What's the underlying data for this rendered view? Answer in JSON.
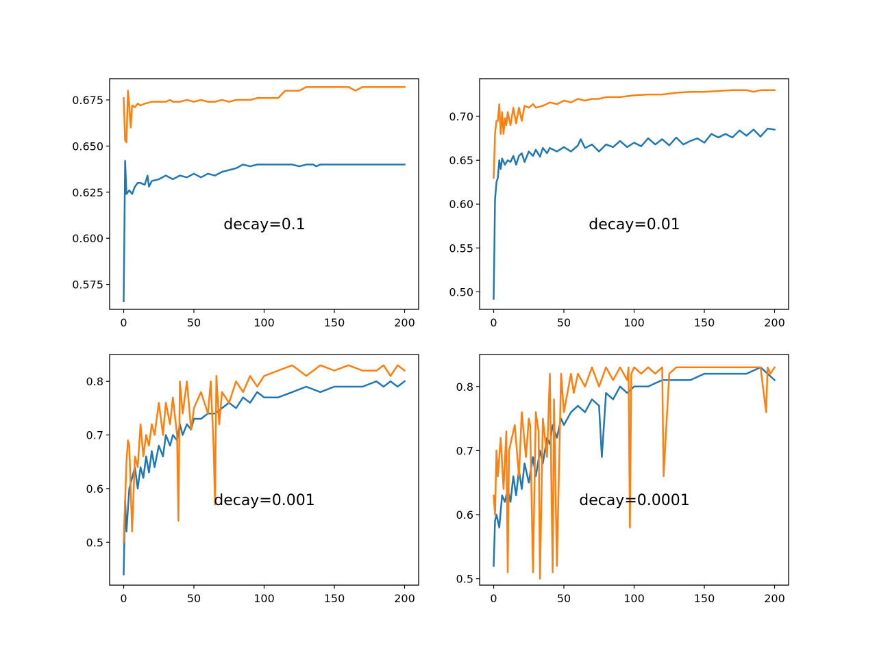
{
  "figure": {
    "colors": {
      "series_1": "#1f77b4",
      "series_2": "#ff7f0e",
      "axes": "#000000",
      "background": "#ffffff"
    },
    "grid": false,
    "legend": "none"
  },
  "chart_data": [
    {
      "type": "line",
      "title": "",
      "xlabel": "",
      "ylabel": "",
      "annotation": "decay=0.1",
      "xlim": [
        -10,
        210
      ],
      "ylim": [
        0.5615,
        0.6865
      ],
      "x_ticks": [
        "0",
        "50",
        "100",
        "150",
        "200"
      ],
      "y_ticks": [
        "0.575",
        "0.600",
        "0.625",
        "0.650",
        "0.675"
      ],
      "x_tick_values": [
        0,
        50,
        100,
        150,
        200
      ],
      "y_tick_values": [
        0.575,
        0.6,
        0.625,
        0.65,
        0.675
      ],
      "series": [
        {
          "color": "#1f77b4",
          "x": [
            0,
            1,
            2,
            4,
            6,
            8,
            10,
            12,
            15,
            17,
            18,
            20,
            25,
            30,
            35,
            40,
            45,
            50,
            55,
            60,
            65,
            70,
            75,
            80,
            85,
            90,
            95,
            100,
            110,
            120,
            125,
            130,
            135,
            137,
            140,
            150,
            160,
            170,
            180,
            190,
            200
          ],
          "values": [
            0.566,
            0.642,
            0.624,
            0.626,
            0.624,
            0.628,
            0.63,
            0.63,
            0.629,
            0.634,
            0.628,
            0.631,
            0.632,
            0.634,
            0.632,
            0.634,
            0.633,
            0.635,
            0.633,
            0.635,
            0.634,
            0.636,
            0.637,
            0.638,
            0.64,
            0.639,
            0.64,
            0.64,
            0.64,
            0.64,
            0.639,
            0.64,
            0.64,
            0.639,
            0.64,
            0.64,
            0.64,
            0.64,
            0.64,
            0.64,
            0.64
          ]
        },
        {
          "color": "#ff7f0e",
          "x": [
            0,
            1,
            2,
            3,
            4,
            5,
            6,
            8,
            10,
            12,
            15,
            20,
            25,
            30,
            33,
            35,
            40,
            45,
            50,
            55,
            60,
            65,
            70,
            75,
            80,
            85,
            90,
            95,
            100,
            110,
            115,
            120,
            125,
            130,
            135,
            140,
            150,
            160,
            165,
            170,
            180,
            190,
            200
          ],
          "values": [
            0.676,
            0.653,
            0.652,
            0.68,
            0.672,
            0.66,
            0.672,
            0.671,
            0.673,
            0.672,
            0.673,
            0.674,
            0.674,
            0.674,
            0.675,
            0.674,
            0.674,
            0.675,
            0.674,
            0.675,
            0.674,
            0.674,
            0.675,
            0.674,
            0.675,
            0.675,
            0.675,
            0.676,
            0.676,
            0.676,
            0.68,
            0.68,
            0.68,
            0.682,
            0.682,
            0.682,
            0.682,
            0.682,
            0.68,
            0.682,
            0.682,
            0.682,
            0.682
          ]
        }
      ]
    },
    {
      "type": "line",
      "title": "",
      "xlabel": "",
      "ylabel": "",
      "annotation": "decay=0.01",
      "xlim": [
        -10,
        210
      ],
      "ylim": [
        0.48,
        0.743
      ],
      "x_ticks": [
        "0",
        "50",
        "100",
        "150",
        "200"
      ],
      "y_ticks": [
        "0.50",
        "0.55",
        "0.60",
        "0.65",
        "0.70"
      ],
      "x_tick_values": [
        0,
        50,
        100,
        150,
        200
      ],
      "y_tick_values": [
        0.5,
        0.55,
        0.6,
        0.65,
        0.7
      ],
      "series": [
        {
          "color": "#1f77b4",
          "x": [
            0,
            1,
            2,
            3,
            4,
            5,
            6,
            8,
            10,
            12,
            14,
            16,
            18,
            20,
            22,
            25,
            28,
            30,
            33,
            35,
            38,
            40,
            45,
            50,
            55,
            60,
            62,
            65,
            70,
            75,
            80,
            85,
            90,
            95,
            100,
            105,
            110,
            115,
            120,
            125,
            130,
            135,
            140,
            145,
            150,
            155,
            160,
            165,
            170,
            175,
            180,
            185,
            190,
            195,
            200
          ],
          "values": [
            0.492,
            0.605,
            0.625,
            0.63,
            0.65,
            0.64,
            0.652,
            0.645,
            0.65,
            0.648,
            0.655,
            0.645,
            0.655,
            0.658,
            0.648,
            0.66,
            0.655,
            0.662,
            0.654,
            0.664,
            0.658,
            0.664,
            0.66,
            0.665,
            0.66,
            0.667,
            0.674,
            0.664,
            0.668,
            0.66,
            0.668,
            0.665,
            0.672,
            0.665,
            0.67,
            0.666,
            0.675,
            0.668,
            0.674,
            0.667,
            0.676,
            0.668,
            0.672,
            0.675,
            0.67,
            0.68,
            0.676,
            0.68,
            0.676,
            0.684,
            0.678,
            0.685,
            0.677,
            0.686,
            0.685
          ]
        },
        {
          "color": "#ff7f0e",
          "x": [
            0,
            1,
            2,
            3,
            4,
            5,
            6,
            7,
            8,
            9,
            10,
            12,
            14,
            16,
            18,
            20,
            22,
            25,
            28,
            30,
            35,
            40,
            45,
            50,
            55,
            60,
            65,
            70,
            75,
            80,
            90,
            100,
            110,
            120,
            130,
            140,
            150,
            160,
            170,
            180,
            185,
            190,
            200
          ],
          "values": [
            0.63,
            0.68,
            0.695,
            0.695,
            0.714,
            0.68,
            0.705,
            0.68,
            0.698,
            0.69,
            0.705,
            0.69,
            0.71,
            0.692,
            0.71,
            0.695,
            0.712,
            0.71,
            0.714,
            0.71,
            0.712,
            0.716,
            0.714,
            0.718,
            0.716,
            0.72,
            0.718,
            0.72,
            0.72,
            0.722,
            0.722,
            0.724,
            0.725,
            0.725,
            0.727,
            0.728,
            0.728,
            0.729,
            0.73,
            0.73,
            0.728,
            0.73,
            0.73
          ]
        }
      ]
    },
    {
      "type": "line",
      "title": "",
      "xlabel": "",
      "ylabel": "",
      "annotation": "decay=0.001",
      "xlim": [
        -10,
        210
      ],
      "ylim": [
        0.42,
        0.85
      ],
      "x_ticks": [
        "0",
        "50",
        "100",
        "150",
        "200"
      ],
      "y_ticks": [
        "0.5",
        "0.6",
        "0.7",
        "0.8"
      ],
      "x_tick_values": [
        0,
        50,
        100,
        150,
        200
      ],
      "y_tick_values": [
        0.5,
        0.6,
        0.7,
        0.8
      ],
      "series": [
        {
          "color": "#1f77b4",
          "x": [
            0,
            1,
            2,
            4,
            6,
            8,
            10,
            12,
            14,
            16,
            18,
            20,
            22,
            25,
            28,
            30,
            33,
            35,
            38,
            40,
            42,
            45,
            48,
            50,
            55,
            60,
            65,
            70,
            75,
            80,
            85,
            90,
            95,
            100,
            110,
            120,
            130,
            140,
            150,
            160,
            170,
            180,
            185,
            190,
            195,
            200
          ],
          "values": [
            0.44,
            0.58,
            0.52,
            0.6,
            0.62,
            0.64,
            0.6,
            0.64,
            0.62,
            0.66,
            0.63,
            0.67,
            0.64,
            0.68,
            0.66,
            0.7,
            0.68,
            0.7,
            0.69,
            0.72,
            0.7,
            0.72,
            0.71,
            0.73,
            0.73,
            0.74,
            0.74,
            0.75,
            0.76,
            0.75,
            0.77,
            0.76,
            0.78,
            0.77,
            0.77,
            0.78,
            0.79,
            0.78,
            0.79,
            0.79,
            0.79,
            0.8,
            0.79,
            0.8,
            0.79,
            0.8
          ]
        },
        {
          "color": "#ff7f0e",
          "x": [
            0,
            2,
            3,
            4,
            6,
            8,
            10,
            12,
            14,
            16,
            18,
            20,
            22,
            25,
            28,
            30,
            33,
            35,
            38,
            39,
            40,
            42,
            45,
            48,
            50,
            55,
            60,
            62,
            64,
            65,
            66,
            68,
            70,
            75,
            80,
            85,
            90,
            95,
            100,
            110,
            120,
            130,
            140,
            150,
            160,
            170,
            180,
            185,
            190,
            195,
            200
          ],
          "values": [
            0.5,
            0.65,
            0.69,
            0.68,
            0.52,
            0.66,
            0.64,
            0.72,
            0.66,
            0.7,
            0.68,
            0.72,
            0.7,
            0.76,
            0.7,
            0.76,
            0.72,
            0.77,
            0.7,
            0.54,
            0.8,
            0.74,
            0.8,
            0.71,
            0.75,
            0.78,
            0.74,
            0.8,
            0.68,
            0.57,
            0.81,
            0.72,
            0.78,
            0.76,
            0.8,
            0.78,
            0.81,
            0.79,
            0.81,
            0.82,
            0.83,
            0.81,
            0.83,
            0.82,
            0.83,
            0.82,
            0.82,
            0.83,
            0.81,
            0.83,
            0.82
          ]
        }
      ]
    },
    {
      "type": "line",
      "title": "",
      "xlabel": "",
      "ylabel": "",
      "annotation": "decay=0.0001",
      "xlim": [
        -10,
        210
      ],
      "ylim": [
        0.49,
        0.85
      ],
      "x_ticks": [
        "0",
        "50",
        "100",
        "150",
        "200"
      ],
      "y_ticks": [
        "0.5",
        "0.6",
        "0.7",
        "0.8"
      ],
      "x_tick_values": [
        0,
        50,
        100,
        150,
        200
      ],
      "y_tick_values": [
        0.5,
        0.6,
        0.7,
        0.8
      ],
      "series": [
        {
          "color": "#1f77b4",
          "x": [
            0,
            1,
            2,
            4,
            6,
            8,
            10,
            12,
            14,
            16,
            18,
            20,
            22,
            25,
            28,
            30,
            33,
            35,
            38,
            40,
            42,
            45,
            48,
            50,
            55,
            60,
            65,
            70,
            75,
            77,
            80,
            85,
            90,
            95,
            100,
            110,
            120,
            130,
            140,
            150,
            160,
            170,
            180,
            190,
            195,
            200
          ],
          "values": [
            0.52,
            0.59,
            0.6,
            0.58,
            0.63,
            0.62,
            0.64,
            0.62,
            0.66,
            0.63,
            0.67,
            0.64,
            0.68,
            0.65,
            0.69,
            0.66,
            0.7,
            0.68,
            0.72,
            0.71,
            0.74,
            0.72,
            0.75,
            0.74,
            0.76,
            0.77,
            0.76,
            0.78,
            0.77,
            0.69,
            0.79,
            0.78,
            0.8,
            0.79,
            0.8,
            0.8,
            0.81,
            0.81,
            0.81,
            0.82,
            0.82,
            0.82,
            0.82,
            0.83,
            0.82,
            0.81
          ]
        },
        {
          "color": "#ff7f0e",
          "x": [
            0,
            1,
            2,
            3,
            5,
            7,
            9,
            10,
            11,
            13,
            15,
            18,
            20,
            23,
            25,
            26,
            28,
            30,
            32,
            33,
            35,
            38,
            40,
            42,
            43,
            45,
            48,
            50,
            55,
            57,
            60,
            65,
            70,
            75,
            80,
            85,
            90,
            95,
            96,
            97,
            98,
            100,
            105,
            110,
            115,
            120,
            121,
            125,
            130,
            140,
            150,
            160,
            170,
            180,
            190,
            194,
            195,
            197,
            200
          ],
          "values": [
            0.63,
            0.6,
            0.7,
            0.66,
            0.72,
            0.64,
            0.73,
            0.51,
            0.7,
            0.72,
            0.74,
            0.66,
            0.76,
            0.69,
            0.75,
            0.74,
            0.51,
            0.76,
            0.73,
            0.5,
            0.75,
            0.69,
            0.82,
            0.51,
            0.78,
            0.52,
            0.82,
            0.76,
            0.82,
            0.79,
            0.82,
            0.8,
            0.83,
            0.8,
            0.83,
            0.81,
            0.83,
            0.81,
            0.83,
            0.58,
            0.82,
            0.83,
            0.82,
            0.83,
            0.82,
            0.83,
            0.66,
            0.82,
            0.83,
            0.83,
            0.83,
            0.83,
            0.83,
            0.83,
            0.83,
            0.76,
            0.83,
            0.82,
            0.83
          ]
        }
      ]
    }
  ]
}
